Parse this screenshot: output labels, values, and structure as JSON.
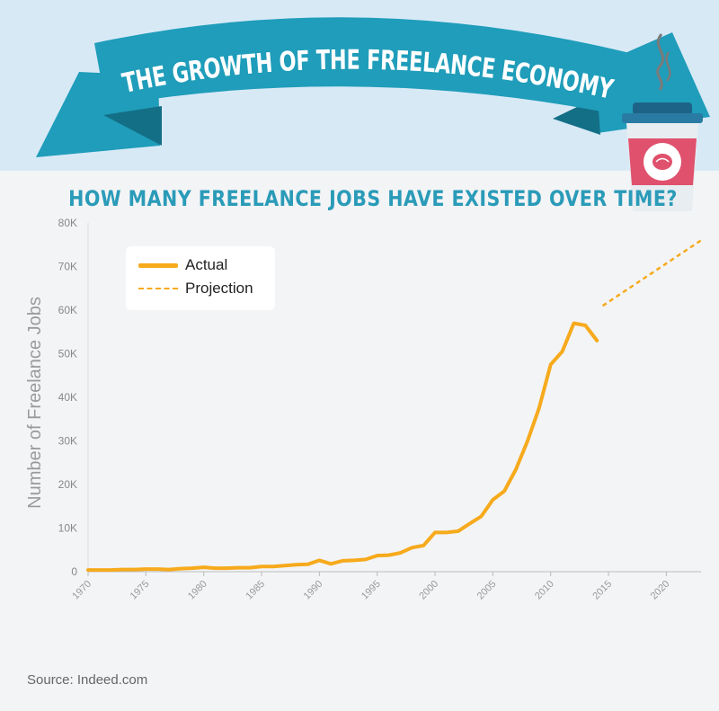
{
  "banner": {
    "title": "THE GROWTH OF THE FREELANCE ECONOMY",
    "colors": {
      "ribbon": "#1f9dba",
      "ribbon_fold": "#136f86",
      "header_bg": "#d8e9f6"
    }
  },
  "decoration": {
    "cup_icon": "coffee-cup-icon"
  },
  "chart_data": {
    "type": "line",
    "title": "HOW MANY FREELANCE JOBS HAVE EXISTED OVER TIME?",
    "ylabel": "Number of Freelance Jobs",
    "xlabel": "",
    "xlim": [
      1970,
      2023
    ],
    "ylim": [
      0,
      80000
    ],
    "x_ticks": [
      1970,
      1975,
      1980,
      1985,
      1990,
      1995,
      2000,
      2005,
      2010,
      2015,
      2020
    ],
    "x_tick_labels": [
      "1970",
      "1975",
      "1980",
      "1985",
      "1990",
      "1995",
      "2000",
      "2005",
      "2010",
      "2015",
      "2020"
    ],
    "y_ticks": [
      0,
      10000,
      20000,
      30000,
      40000,
      50000,
      60000,
      70000,
      80000
    ],
    "y_tick_labels": [
      "0",
      "10K",
      "20K",
      "30K",
      "40K",
      "50K",
      "60K",
      "70K",
      "80K"
    ],
    "grid": false,
    "legend_position": "top-left",
    "series": [
      {
        "name": "Actual",
        "color": "#f6aa1c",
        "style": "solid",
        "x": [
          1970,
          1971,
          1972,
          1973,
          1974,
          1975,
          1976,
          1977,
          1978,
          1979,
          1980,
          1981,
          1982,
          1983,
          1984,
          1985,
          1986,
          1987,
          1988,
          1989,
          1990,
          1991,
          1992,
          1993,
          1994,
          1995,
          1996,
          1997,
          1998,
          1999,
          2000,
          2001,
          2002,
          2003,
          2004,
          2005,
          2006,
          2007,
          2008,
          2009,
          2010,
          2011,
          2012,
          2013,
          2014
        ],
        "y": [
          400,
          400,
          400,
          500,
          500,
          600,
          600,
          500,
          700,
          800,
          1000,
          800,
          800,
          900,
          900,
          1200,
          1200,
          1400,
          1600,
          1700,
          2600,
          1800,
          2500,
          2600,
          2800,
          3700,
          3800,
          4300,
          5500,
          6000,
          9000,
          9000,
          9300,
          11000,
          12700,
          16500,
          18500,
          23500,
          30000,
          37500,
          47500,
          50500,
          57000,
          56500,
          53000
        ]
      },
      {
        "name": "Projection",
        "color": "#f6aa1c",
        "style": "dashed",
        "x": [
          2014.5,
          2023
        ],
        "y": [
          61000,
          76000
        ]
      }
    ]
  },
  "legend": {
    "actual_label": "Actual",
    "projection_label": "Projection"
  },
  "footer": {
    "source": "Source: Indeed.com"
  }
}
